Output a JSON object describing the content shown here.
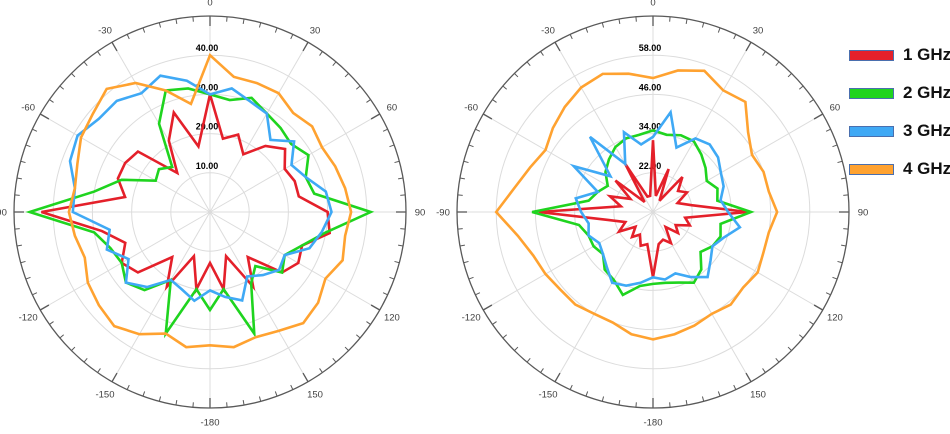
{
  "legend": {
    "items": [
      {
        "label": "1 GHz",
        "color": "#e4202a"
      },
      {
        "label": "2 GHz",
        "color": "#1fd41f"
      },
      {
        "label": "3 GHz",
        "color": "#3fa9f5"
      },
      {
        "label": "4 GHz",
        "color": "#ffa230"
      }
    ],
    "swatch_border_color": "#4a6fae"
  },
  "style": {
    "outer_circle_color": "#595959",
    "grid_color": "#dcdcdc",
    "angle_label_color": "#3f3f3f",
    "ring_label_color": "#000000"
  },
  "chart_data": [
    {
      "name": "polar-left",
      "type": "line",
      "projection": "polar",
      "title": "",
      "angle_axis": {
        "unit": "degrees",
        "zero_position": "top",
        "direction": "clockwise",
        "labels": [
          0,
          30,
          60,
          90,
          120,
          150,
          -180,
          -150,
          -120,
          -90,
          -60,
          -30
        ],
        "major_tick_deg": 30,
        "minor_tick_deg": 5
      },
      "r_axis": {
        "min": 0,
        "max": 50,
        "rings": [
          10,
          20,
          30,
          40
        ],
        "ring_labels": [
          "10.00",
          "20.00",
          "30.00",
          "40.00"
        ]
      },
      "angles_deg": [
        -180,
        -170,
        -160,
        -150,
        -140,
        -130,
        -120,
        -110,
        -100,
        -90,
        -80,
        -70,
        -60,
        -50,
        -40,
        -30,
        -20,
        -10,
        0,
        10,
        20,
        30,
        40,
        50,
        60,
        70,
        80,
        90,
        100,
        110,
        120,
        130,
        140,
        150,
        160,
        170,
        180
      ],
      "series": [
        {
          "name": "1 GHz",
          "color": "#e4202a",
          "values": [
            13,
            20,
            12,
            22,
            15,
            24,
            26,
            23,
            28,
            43,
            22,
            25,
            25,
            24,
            13,
            21,
            27,
            17,
            30,
            19,
            21,
            17,
            22,
            25,
            22,
            23,
            23,
            30,
            31,
            25,
            26,
            24,
            15,
            22,
            12,
            20,
            13
          ]
        },
        {
          "name": "2 GHz",
          "color": "#1fd41f",
          "values": [
            25,
            20,
            33,
            20,
            26,
            28,
            26,
            27,
            30,
            46,
            30,
            24,
            16,
            17,
            15,
            26,
            33,
            32,
            30,
            29,
            31,
            29,
            28,
            27,
            29,
            26,
            27,
            41,
            30,
            25,
            22,
            24,
            18,
            21,
            33,
            20,
            25
          ]
        },
        {
          "name": "3 GHz",
          "color": "#3fa9f5",
          "values": [
            20,
            23,
            21,
            20,
            25,
            28,
            24,
            28,
            26,
            35,
            35,
            38,
            39,
            37,
            37,
            35,
            37,
            34,
            30,
            32,
            30,
            29,
            24,
            28,
            24,
            26,
            30,
            31,
            29,
            27,
            22,
            23,
            21,
            19,
            24,
            22,
            20
          ]
        },
        {
          "name": "4 GHz",
          "color": "#ffa230",
          "values": [
            34,
            35,
            33,
            36,
            38,
            37,
            36,
            34,
            35,
            36,
            35,
            36,
            38,
            39,
            41,
            38,
            33,
            28,
            40,
            35,
            35,
            35,
            33,
            34,
            33,
            34,
            35,
            36,
            35,
            36,
            34,
            36,
            37,
            35,
            34,
            35,
            34
          ]
        }
      ]
    },
    {
      "name": "polar-right",
      "type": "line",
      "projection": "polar",
      "title": "",
      "angle_axis": {
        "unit": "degrees",
        "zero_position": "top",
        "direction": "clockwise",
        "labels": [
          0,
          30,
          60,
          90,
          120,
          150,
          -180,
          -150,
          -120,
          -90,
          -60,
          -30
        ],
        "major_tick_deg": 30,
        "minor_tick_deg": 5
      },
      "r_axis": {
        "min": 10,
        "max": 70,
        "rings": [
          22,
          34,
          46,
          58
        ],
        "ring_labels": [
          "22.00",
          "34.00",
          "46.00",
          "58.00"
        ]
      },
      "angles_deg": [
        -180,
        -170,
        -160,
        -150,
        -140,
        -130,
        -120,
        -110,
        -100,
        -90,
        -80,
        -70,
        -60,
        -50,
        -40,
        -30,
        -20,
        -10,
        0,
        10,
        20,
        30,
        40,
        50,
        60,
        70,
        80,
        90,
        100,
        110,
        120,
        130,
        140,
        150,
        160,
        170,
        180
      ],
      "series": [
        {
          "name": "1 GHz",
          "color": "#e4202a",
          "values": [
            30,
            20,
            21,
            18,
            20,
            17,
            22,
            19,
            24,
            45,
            20,
            24,
            18,
            25,
            14,
            27,
            15,
            15,
            32,
            15,
            24,
            14,
            24,
            20,
            22,
            18,
            22,
            39,
            20,
            22,
            18,
            20,
            16,
            21,
            19,
            20,
            30
          ]
        },
        {
          "name": "2 GHz",
          "color": "#1fd41f",
          "values": [
            32,
            33,
            37,
            34,
            33,
            30,
            31,
            31,
            33,
            47,
            30,
            28,
            26,
            29,
            31,
            33,
            34,
            34,
            35,
            34,
            35,
            35,
            33,
            31,
            29,
            31,
            30,
            40,
            31,
            32,
            31,
            29,
            33,
            35,
            33,
            32,
            32
          ]
        },
        {
          "name": "3 GHz",
          "color": "#3fa9f5",
          "values": [
            30,
            32,
            34,
            35,
            32,
            30,
            29,
            31,
            30,
            32,
            34,
            28,
            38,
            27,
            40,
            27,
            36,
            31,
            33,
            41,
            31,
            36,
            37,
            36,
            34,
            33,
            31,
            33,
            37,
            33,
            31,
            33,
            36,
            33,
            30,
            31,
            30
          ]
        },
        {
          "name": "4 GHz",
          "color": "#ffa230",
          "values": [
            49,
            48,
            46,
            46,
            47,
            47,
            48,
            49,
            52,
            58,
            53,
            50,
            48,
            50,
            52,
            54,
            55,
            53,
            51,
            54,
            56,
            53,
            54,
            48,
            45,
            46,
            46,
            48,
            46,
            46,
            47,
            46,
            47,
            46,
            47,
            48,
            49
          ]
        }
      ]
    }
  ]
}
